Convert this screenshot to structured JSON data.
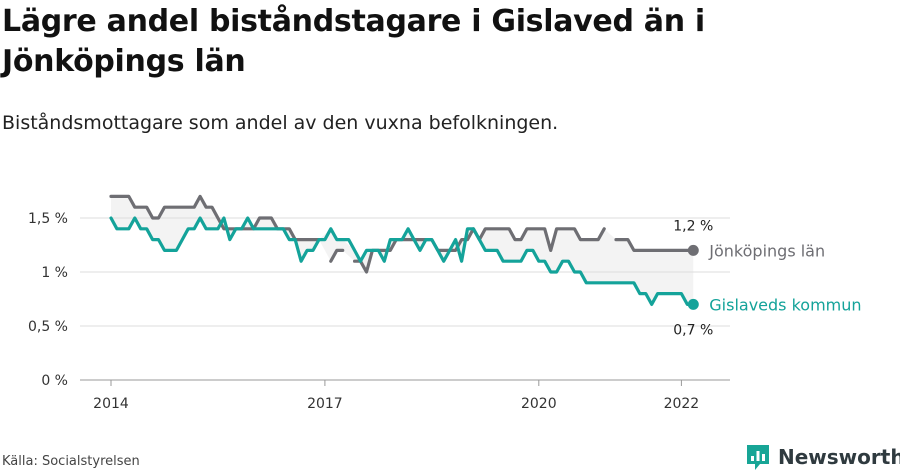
{
  "header": {
    "title": "Lägre andel biståndstagare i Gislaved än i Jönköpings län",
    "subtitle": "Biståndsmottagare som andel av den vuxna befolkningen."
  },
  "footer": {
    "source": "Källa: Socialstyrelsen",
    "brand": "Newsworthy"
  },
  "colors": {
    "jonkoping": "#6e6e73",
    "gislaved": "#14a39a",
    "grid": "#dddddd",
    "band": "#f3f3f3"
  },
  "chart_data": {
    "type": "line",
    "title": "Lägre andel biståndstagare i Gislaved än i Jönköpings län",
    "subtitle": "Biståndsmottagare som andel av den vuxna befolkningen.",
    "xlabel": "",
    "ylabel": "",
    "x_ticks": [
      "2014",
      "2017",
      "2020",
      "2022"
    ],
    "y_ticks": [
      "0 %",
      "0,5 %",
      "1 %",
      "1,5 %"
    ],
    "ylim": [
      0,
      1.8
    ],
    "grid": true,
    "legend": "end-of-line labels",
    "series": [
      {
        "name": "Jönköpings län",
        "color": "#6e6e73",
        "end_label": "1,2 %",
        "end_label_pos": "above",
        "points": [
          [
            "2014-01",
            1.7
          ],
          [
            "2014-02",
            1.7
          ],
          [
            "2014-03",
            1.7
          ],
          [
            "2014-04",
            1.7
          ],
          [
            "2014-05",
            1.6
          ],
          [
            "2014-06",
            1.6
          ],
          [
            "2014-07",
            1.6
          ],
          [
            "2014-08",
            1.5
          ],
          [
            "2014-09",
            1.5
          ],
          [
            "2014-10",
            1.6
          ],
          [
            "2014-11",
            1.6
          ],
          [
            "2014-12",
            1.6
          ],
          [
            "2015-01",
            1.6
          ],
          [
            "2015-02",
            1.6
          ],
          [
            "2015-03",
            1.6
          ],
          [
            "2015-04",
            1.7
          ],
          [
            "2015-05",
            1.6
          ],
          [
            "2015-06",
            1.6
          ],
          [
            "2015-07",
            1.5
          ],
          [
            "2015-08",
            1.4
          ],
          [
            "2015-09",
            1.4
          ],
          [
            "2015-10",
            1.4
          ],
          [
            "2015-11",
            1.4
          ],
          [
            "2015-12",
            1.4
          ],
          [
            "2016-01",
            1.4
          ],
          [
            "2016-02",
            1.5
          ],
          [
            "2016-03",
            1.5
          ],
          [
            "2016-04",
            1.5
          ],
          [
            "2016-05",
            1.4
          ],
          [
            "2016-06",
            1.4
          ],
          [
            "2016-07",
            1.4
          ],
          [
            "2016-08",
            1.3
          ],
          [
            "2016-09",
            1.3
          ],
          [
            "2016-10",
            1.3
          ],
          [
            "2016-11",
            1.3
          ],
          [
            "2016-12",
            1.3
          ],
          [
            "2017-01",
            null
          ],
          [
            "2017-02",
            1.1
          ],
          [
            "2017-03",
            1.2
          ],
          [
            "2017-04",
            1.2
          ],
          [
            "2017-05",
            null
          ],
          [
            "2017-06",
            1.1
          ],
          [
            "2017-07",
            1.1
          ],
          [
            "2017-08",
            1.0
          ],
          [
            "2017-09",
            1.2
          ],
          [
            "2017-10",
            1.2
          ],
          [
            "2017-11",
            1.2
          ],
          [
            "2017-12",
            1.2
          ],
          [
            "2018-01",
            1.3
          ],
          [
            "2018-02",
            1.3
          ],
          [
            "2018-03",
            1.3
          ],
          [
            "2018-04",
            1.3
          ],
          [
            "2018-05",
            1.3
          ],
          [
            "2018-06",
            1.3
          ],
          [
            "2018-07",
            1.3
          ],
          [
            "2018-08",
            1.2
          ],
          [
            "2018-09",
            1.2
          ],
          [
            "2018-10",
            1.2
          ],
          [
            "2018-11",
            1.2
          ],
          [
            "2018-12",
            1.3
          ],
          [
            "2019-01",
            1.3
          ],
          [
            "2019-02",
            1.4
          ],
          [
            "2019-03",
            1.3
          ],
          [
            "2019-04",
            1.4
          ],
          [
            "2019-05",
            1.4
          ],
          [
            "2019-06",
            1.4
          ],
          [
            "2019-07",
            1.4
          ],
          [
            "2019-08",
            1.4
          ],
          [
            "2019-09",
            1.3
          ],
          [
            "2019-10",
            1.3
          ],
          [
            "2019-11",
            1.4
          ],
          [
            "2019-12",
            1.4
          ],
          [
            "2020-01",
            1.4
          ],
          [
            "2020-02",
            1.4
          ],
          [
            "2020-03",
            1.2
          ],
          [
            "2020-04",
            1.4
          ],
          [
            "2020-05",
            1.4
          ],
          [
            "2020-06",
            1.4
          ],
          [
            "2020-07",
            1.4
          ],
          [
            "2020-08",
            1.3
          ],
          [
            "2020-09",
            1.3
          ],
          [
            "2020-10",
            1.3
          ],
          [
            "2020-11",
            1.3
          ],
          [
            "2020-12",
            1.4
          ],
          [
            "2021-01",
            null
          ],
          [
            "2021-02",
            1.3
          ],
          [
            "2021-03",
            1.3
          ],
          [
            "2021-04",
            1.3
          ],
          [
            "2021-05",
            1.2
          ],
          [
            "2021-06",
            1.2
          ],
          [
            "2021-07",
            1.2
          ],
          [
            "2021-08",
            1.2
          ],
          [
            "2021-09",
            1.2
          ],
          [
            "2021-10",
            1.2
          ],
          [
            "2021-11",
            1.2
          ],
          [
            "2021-12",
            1.2
          ],
          [
            "2022-01",
            1.2
          ],
          [
            "2022-02",
            1.2
          ],
          [
            "2022-03",
            1.2
          ]
        ]
      },
      {
        "name": "Gislaveds kommun",
        "color": "#14a39a",
        "end_label": "0,7 %",
        "end_label_pos": "below",
        "points": [
          [
            "2014-01",
            1.5
          ],
          [
            "2014-02",
            1.4
          ],
          [
            "2014-03",
            1.4
          ],
          [
            "2014-04",
            1.4
          ],
          [
            "2014-05",
            1.5
          ],
          [
            "2014-06",
            1.4
          ],
          [
            "2014-07",
            1.4
          ],
          [
            "2014-08",
            1.3
          ],
          [
            "2014-09",
            1.3
          ],
          [
            "2014-10",
            1.2
          ],
          [
            "2014-11",
            1.2
          ],
          [
            "2014-12",
            1.2
          ],
          [
            "2015-01",
            1.3
          ],
          [
            "2015-02",
            1.4
          ],
          [
            "2015-03",
            1.4
          ],
          [
            "2015-04",
            1.5
          ],
          [
            "2015-05",
            1.4
          ],
          [
            "2015-06",
            1.4
          ],
          [
            "2015-07",
            1.4
          ],
          [
            "2015-08",
            1.5
          ],
          [
            "2015-09",
            1.3
          ],
          [
            "2015-10",
            1.4
          ],
          [
            "2015-11",
            1.4
          ],
          [
            "2015-12",
            1.5
          ],
          [
            "2016-01",
            1.4
          ],
          [
            "2016-02",
            1.4
          ],
          [
            "2016-03",
            1.4
          ],
          [
            "2016-04",
            1.4
          ],
          [
            "2016-05",
            1.4
          ],
          [
            "2016-06",
            1.4
          ],
          [
            "2016-07",
            1.3
          ],
          [
            "2016-08",
            1.3
          ],
          [
            "2016-09",
            1.1
          ],
          [
            "2016-10",
            1.2
          ],
          [
            "2016-11",
            1.2
          ],
          [
            "2016-12",
            1.3
          ],
          [
            "2017-01",
            1.3
          ],
          [
            "2017-02",
            1.4
          ],
          [
            "2017-03",
            1.3
          ],
          [
            "2017-04",
            1.3
          ],
          [
            "2017-05",
            1.3
          ],
          [
            "2017-06",
            1.2
          ],
          [
            "2017-07",
            1.1
          ],
          [
            "2017-08",
            1.2
          ],
          [
            "2017-09",
            1.2
          ],
          [
            "2017-10",
            1.2
          ],
          [
            "2017-11",
            1.1
          ],
          [
            "2017-12",
            1.3
          ],
          [
            "2018-01",
            1.3
          ],
          [
            "2018-02",
            1.3
          ],
          [
            "2018-03",
            1.4
          ],
          [
            "2018-04",
            1.3
          ],
          [
            "2018-05",
            1.2
          ],
          [
            "2018-06",
            1.3
          ],
          [
            "2018-07",
            1.3
          ],
          [
            "2018-08",
            1.2
          ],
          [
            "2018-09",
            1.1
          ],
          [
            "2018-10",
            1.2
          ],
          [
            "2018-11",
            1.3
          ],
          [
            "2018-12",
            1.1
          ],
          [
            "2019-01",
            1.4
          ],
          [
            "2019-02",
            1.4
          ],
          [
            "2019-03",
            1.3
          ],
          [
            "2019-04",
            1.2
          ],
          [
            "2019-05",
            1.2
          ],
          [
            "2019-06",
            1.2
          ],
          [
            "2019-07",
            1.1
          ],
          [
            "2019-08",
            1.1
          ],
          [
            "2019-09",
            1.1
          ],
          [
            "2019-10",
            1.1
          ],
          [
            "2019-11",
            1.2
          ],
          [
            "2019-12",
            1.2
          ],
          [
            "2020-01",
            1.1
          ],
          [
            "2020-02",
            1.1
          ],
          [
            "2020-03",
            1.0
          ],
          [
            "2020-04",
            1.0
          ],
          [
            "2020-05",
            1.1
          ],
          [
            "2020-06",
            1.1
          ],
          [
            "2020-07",
            1.0
          ],
          [
            "2020-08",
            1.0
          ],
          [
            "2020-09",
            0.9
          ],
          [
            "2020-10",
            0.9
          ],
          [
            "2020-11",
            0.9
          ],
          [
            "2020-12",
            0.9
          ],
          [
            "2021-01",
            0.9
          ],
          [
            "2021-02",
            0.9
          ],
          [
            "2021-03",
            0.9
          ],
          [
            "2021-04",
            0.9
          ],
          [
            "2021-05",
            0.9
          ],
          [
            "2021-06",
            0.8
          ],
          [
            "2021-07",
            0.8
          ],
          [
            "2021-08",
            0.7
          ],
          [
            "2021-09",
            0.8
          ],
          [
            "2021-10",
            0.8
          ],
          [
            "2021-11",
            0.8
          ],
          [
            "2021-12",
            0.8
          ],
          [
            "2022-01",
            0.8
          ],
          [
            "2022-02",
            0.7
          ],
          [
            "2022-03",
            0.7
          ]
        ]
      }
    ]
  }
}
